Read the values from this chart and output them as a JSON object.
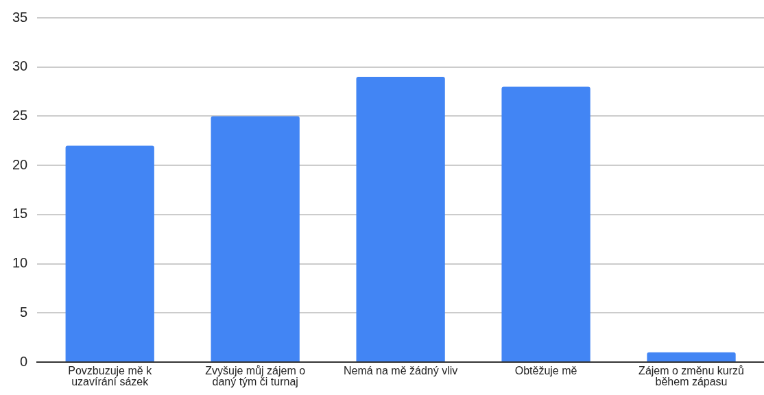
{
  "chart_data": {
    "type": "bar",
    "categories": [
      "Povzbuzuje mě k uzavírání sázek",
      "Zvyšuje můj zájem o daný tým či turnaj",
      "Nemá na mě žádný vliv",
      "Obtěžuje mě",
      "Zájem o změnu kurzů během zápasu"
    ],
    "values": [
      22,
      25,
      29,
      28,
      1
    ],
    "color": "#4285f4",
    "ylim": [
      0,
      35
    ],
    "yticks": [
      0,
      5,
      10,
      15,
      20,
      25,
      30,
      35
    ],
    "grid": "y",
    "legend": false
  }
}
